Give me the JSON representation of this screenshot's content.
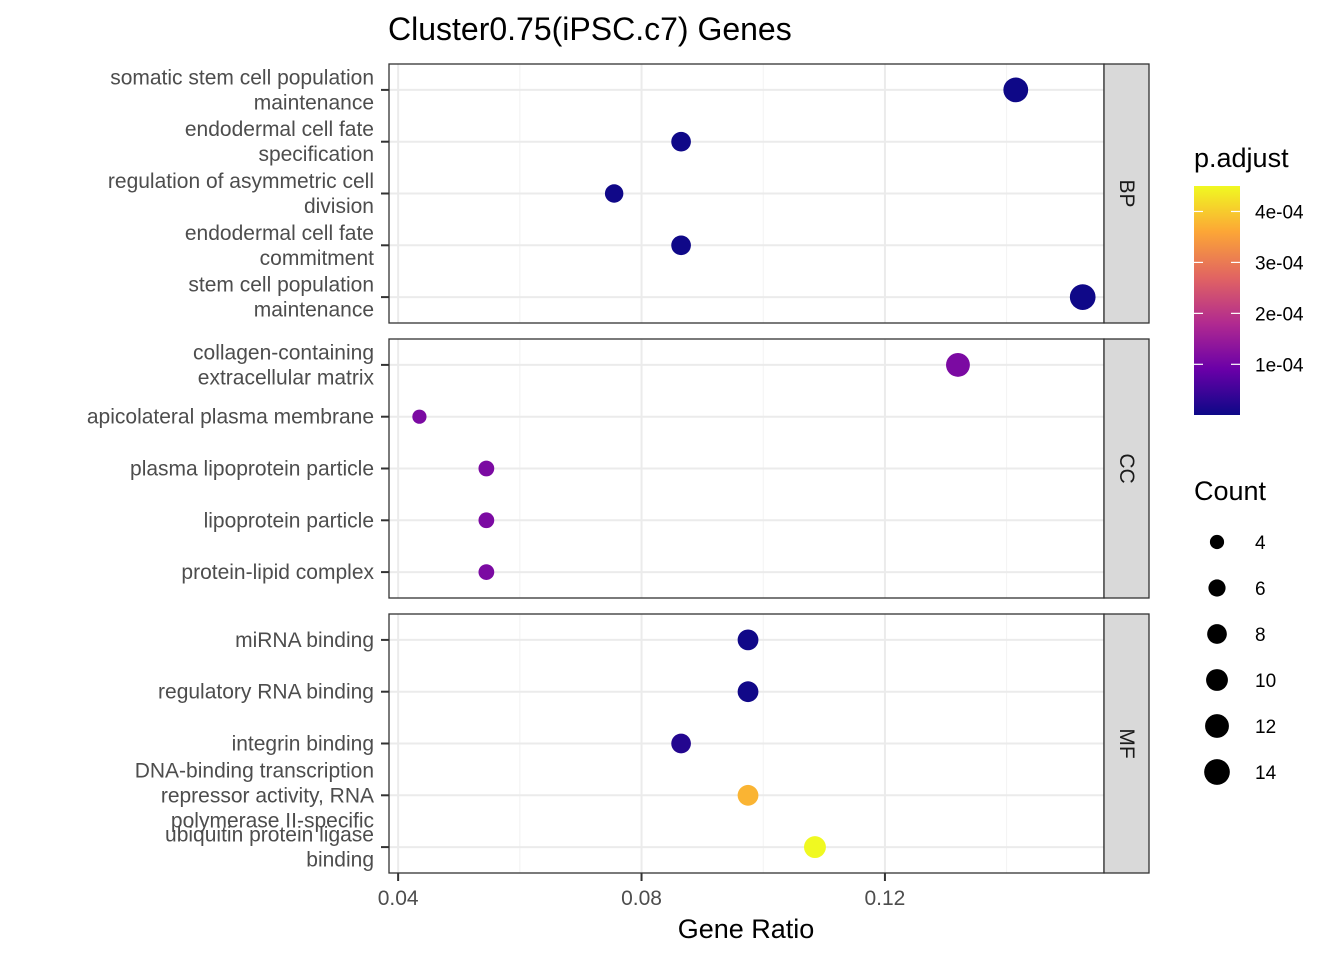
{
  "chart_data": {
    "type": "scatter",
    "title": "Cluster0.75(iPSC.c7) Genes",
    "xlabel": "Gene Ratio",
    "ylabel": "",
    "xlim": [
      0.0385,
      0.156
    ],
    "x_ticks": [
      0.04,
      0.08,
      0.12
    ],
    "x_tick_labels": [
      "0.04",
      "0.08",
      "0.12"
    ],
    "grid": true,
    "facets": [
      {
        "name": "BP",
        "points": [
          {
            "term": [
              "somatic stem cell population",
              "maintenance"
            ],
            "x": 0.1415,
            "count": 13,
            "p_adjust": 1e-06
          },
          {
            "term": [
              "endodermal cell fate",
              "specification"
            ],
            "x": 0.0865,
            "count": 8,
            "p_adjust": 2e-06
          },
          {
            "term": [
              "regulation of asymmetric cell",
              "division"
            ],
            "x": 0.0755,
            "count": 7,
            "p_adjust": 3e-06
          },
          {
            "term": [
              "endodermal cell fate",
              "commitment"
            ],
            "x": 0.0865,
            "count": 8,
            "p_adjust": 2e-06
          },
          {
            "term": [
              "stem cell population",
              "maintenance"
            ],
            "x": 0.1525,
            "count": 14,
            "p_adjust": 2e-06
          }
        ]
      },
      {
        "name": "CC",
        "points": [
          {
            "term": [
              "collagen-containing",
              "extracellular matrix"
            ],
            "x": 0.132,
            "count": 12,
            "p_adjust": 0.000112
          },
          {
            "term": [
              "apicolateral plasma membrane"
            ],
            "x": 0.0435,
            "count": 4,
            "p_adjust": 0.000112
          },
          {
            "term": [
              "plasma lipoprotein particle"
            ],
            "x": 0.0545,
            "count": 5,
            "p_adjust": 0.000112
          },
          {
            "term": [
              "lipoprotein particle"
            ],
            "x": 0.0545,
            "count": 5,
            "p_adjust": 0.000112
          },
          {
            "term": [
              "protein-lipid complex"
            ],
            "x": 0.0545,
            "count": 5,
            "p_adjust": 0.000112
          }
        ]
      },
      {
        "name": "MF",
        "points": [
          {
            "term": [
              "miRNA binding"
            ],
            "x": 0.0975,
            "count": 9,
            "p_adjust": 4e-06
          },
          {
            "term": [
              "regulatory RNA binding"
            ],
            "x": 0.0975,
            "count": 9,
            "p_adjust": 4e-06
          },
          {
            "term": [
              "integrin binding"
            ],
            "x": 0.0865,
            "count": 8,
            "p_adjust": 2.2e-05
          },
          {
            "term": [
              "DNA-binding transcription",
              "repressor activity, RNA",
              "polymerase II-specific"
            ],
            "x": 0.0975,
            "count": 9,
            "p_adjust": 0.000375
          },
          {
            "term": [
              "ubiquitin protein ligase",
              "binding"
            ],
            "x": 0.1085,
            "count": 10,
            "p_adjust": 0.000452
          }
        ]
      }
    ],
    "color_legend": {
      "title": "p.adjust",
      "range": [
        5e-07,
        0.00045
      ],
      "ticks": [
        0.0001,
        0.0002,
        0.0003,
        0.0004
      ],
      "tick_labels": [
        "1e-04",
        "2e-04",
        "3e-04",
        "4e-04"
      ],
      "colors": [
        "#0d0887",
        "#6a00a8",
        "#b12a90",
        "#e16462",
        "#fca636",
        "#f0f921"
      ]
    },
    "size_legend": {
      "title": "Count",
      "values": [
        4,
        6,
        8,
        10,
        12,
        14
      ],
      "labels": [
        "4",
        "6",
        "8",
        "10",
        "12",
        "14"
      ]
    },
    "legend_position": "right"
  }
}
